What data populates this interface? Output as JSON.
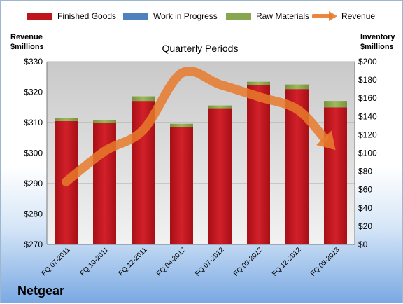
{
  "legend": [
    {
      "label": "Finished Goods",
      "color": "#c0141c",
      "kind": "bar"
    },
    {
      "label": "Work in Progress",
      "color": "#4f81bd",
      "kind": "bar"
    },
    {
      "label": "Raw Materials",
      "color": "#88a54f",
      "kind": "bar"
    },
    {
      "label": "Revenue",
      "color": "#e87a2c",
      "kind": "arrow"
    }
  ],
  "left_axis_title": [
    "Revenue",
    "$millions"
  ],
  "right_axis_title": [
    "Inventory",
    "$millions"
  ],
  "brand": "Netgear",
  "chart_data": {
    "type": "bar",
    "title": "Quarterly Periods",
    "stacked": true,
    "categories": [
      "FQ 07-2011",
      "FQ 10-2011",
      "FQ 12-2011",
      "FQ 04-2012",
      "FQ 07-2012",
      "FQ 09-2012",
      "FQ 12-2012",
      "FQ 03-2013"
    ],
    "series": [
      {
        "name": "Finished Goods",
        "axis": "right",
        "color": "#c0141c",
        "values": [
          135,
          133,
          157,
          128,
          149,
          174,
          170,
          150
        ]
      },
      {
        "name": "Work in Progress",
        "axis": "right",
        "color": "#4f81bd",
        "values": [
          0,
          0,
          0,
          0,
          0,
          0,
          0,
          0
        ]
      },
      {
        "name": "Raw Materials",
        "axis": "right",
        "color": "#88a54f",
        "values": [
          3,
          3,
          5,
          4,
          3,
          4,
          5,
          7
        ]
      },
      {
        "name": "Revenue",
        "axis": "left",
        "type": "line",
        "color": "#e87a2c",
        "values": [
          290.6,
          300.6,
          307.5,
          326.2,
          322.5,
          318.5,
          314.4,
          301
        ]
      }
    ],
    "y_left": {
      "label": "Revenue $millions",
      "ylim": [
        270,
        330
      ],
      "ticks": [
        "$270",
        "$280",
        "$290",
        "$300",
        "$310",
        "$320",
        "$330"
      ]
    },
    "y_right": {
      "label": "Inventory $millions",
      "ylim": [
        0,
        200
      ],
      "ticks": [
        "$0",
        "$20",
        "$40",
        "$60",
        "$80",
        "$100",
        "$120",
        "$140",
        "$160",
        "$180",
        "$200"
      ]
    },
    "grid": true,
    "legend_position": "top"
  }
}
